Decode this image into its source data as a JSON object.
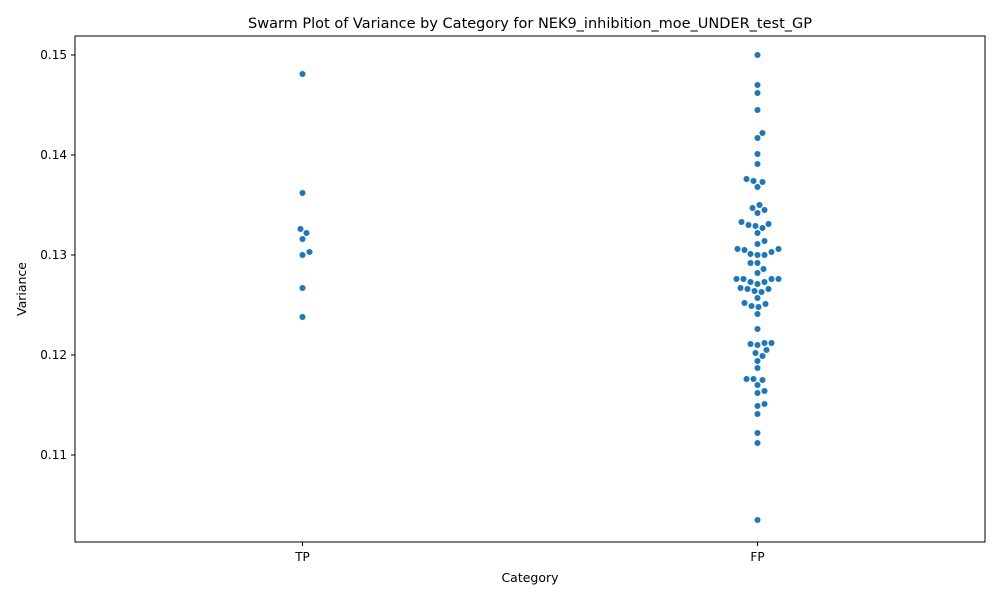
{
  "chart_data": {
    "type": "scatter",
    "subtype": "swarm",
    "title": "Swarm Plot of Variance by Category for NEK9_inhibition_moe_UNDER_test_GP",
    "xlabel": "Category",
    "ylabel": "Variance",
    "categories": [
      "TP",
      "FP"
    ],
    "ylim": [
      0.1013,
      0.1519
    ],
    "yticks": [
      0.11,
      0.12,
      0.13,
      0.14,
      0.15
    ],
    "ytick_labels": [
      "0.11",
      "0.12",
      "0.13",
      "0.14",
      "0.15"
    ],
    "grid": false,
    "color": "#1f77b4",
    "series": [
      {
        "category": "TP",
        "values": [
          0.1481,
          0.1362,
          0.1326,
          0.1322,
          0.1316,
          0.1303,
          0.13,
          0.1267,
          0.1238
        ]
      },
      {
        "category": "FP",
        "values": [
          0.15,
          0.147,
          0.1462,
          0.1445,
          0.1422,
          0.1417,
          0.1401,
          0.1391,
          0.1376,
          0.1374,
          0.1373,
          0.1368,
          0.135,
          0.1347,
          0.1345,
          0.1342,
          0.1333,
          0.1331,
          0.133,
          0.1329,
          0.1327,
          0.1322,
          0.1314,
          0.1311,
          0.1306,
          0.1306,
          0.1305,
          0.1303,
          0.1301,
          0.13,
          0.13,
          0.1292,
          0.1292,
          0.1286,
          0.1282,
          0.1276,
          0.1276,
          0.1276,
          0.1276,
          0.1273,
          0.1273,
          0.1271,
          0.1267,
          0.1266,
          0.1266,
          0.1264,
          0.1263,
          0.1257,
          0.1252,
          0.1251,
          0.1249,
          0.1248,
          0.1241,
          0.1226,
          0.1212,
          0.1212,
          0.1211,
          0.121,
          0.1205,
          0.1202,
          0.1199,
          0.1194,
          0.1187,
          0.1176,
          0.1176,
          0.1175,
          0.117,
          0.1164,
          0.1162,
          0.1151,
          0.1149,
          0.1141,
          0.1122,
          0.1112,
          0.1035
        ]
      }
    ]
  }
}
